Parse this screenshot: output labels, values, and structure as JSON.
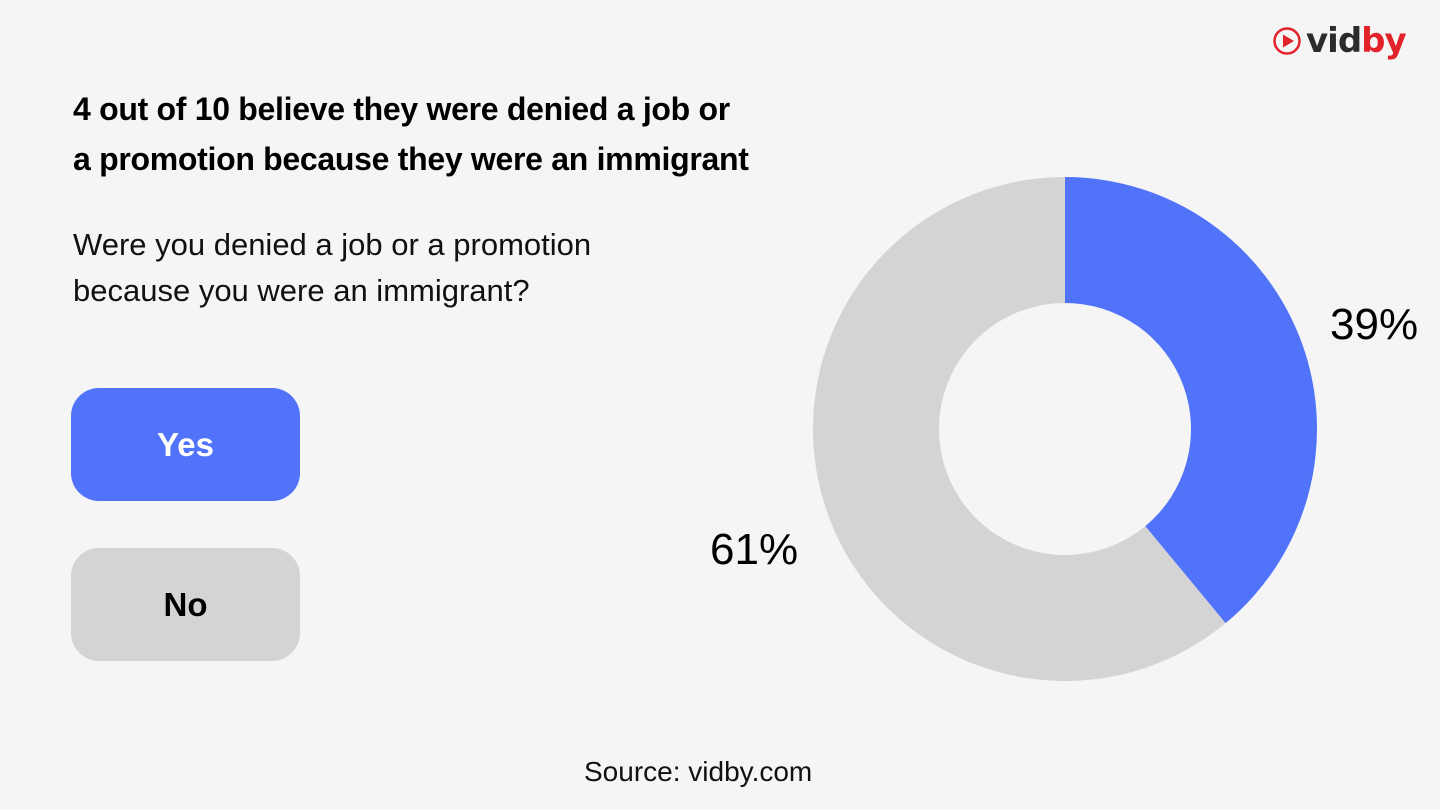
{
  "logo": {
    "icon": "play-translate-icon",
    "text_part1": "vid",
    "text_part2": "by",
    "brand_color": "#e2232a"
  },
  "title": {
    "line1": "4 out of 10 believe they were denied a job or",
    "line2": "a promotion because they were an immigrant"
  },
  "question": {
    "line1": "Were you denied a job or a promotion",
    "line2": "because you were an immigrant?"
  },
  "legend": [
    {
      "label": "Yes",
      "color": "#5173fa"
    },
    {
      "label": "No",
      "color": "#d4d4d4"
    }
  ],
  "labels": {
    "yes_pct": "39%",
    "no_pct": "61%"
  },
  "source": "Source: vidby.com",
  "chart_data": {
    "type": "pie",
    "variant": "donut",
    "title": "4 out of 10 believe they were denied a job or a promotion because they were an immigrant",
    "subtitle": "Were you denied a job or a promotion because you were an immigrant?",
    "categories": [
      "Yes",
      "No"
    ],
    "values": [
      39,
      61
    ],
    "colors": [
      "#5173fa",
      "#d4d4d4"
    ],
    "unit": "%",
    "legend_position": "left",
    "source": "vidby.com"
  }
}
